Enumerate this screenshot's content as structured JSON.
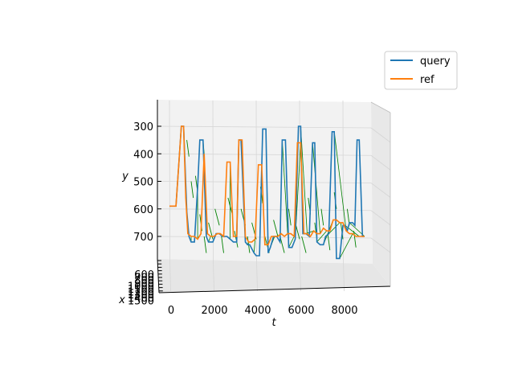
{
  "chart_data": {
    "type": "line",
    "projection": "3d",
    "xlabel": "t",
    "ylabel": "y",
    "zlabel": "x",
    "t_ticks": [
      "0",
      "2000",
      "4000",
      "6000",
      "8000"
    ],
    "t_range": [
      -300,
      9600
    ],
    "y_ticks": [
      "300",
      "400",
      "500",
      "600",
      "700"
    ],
    "y_range": [
      230,
      790
    ],
    "x_ticks": [
      "600",
      "700",
      "800",
      "900",
      "1000",
      "1100",
      "1200",
      "1300",
      "1400",
      "1500"
    ],
    "x_tick_labels_visible": [
      "600",
      "700",
      "800",
      "900",
      "1000",
      "1100",
      "1200",
      "1300",
      "1400",
      "1500"
    ],
    "grid": true,
    "legend_position": "top-right",
    "colors": {
      "query": "#1f77b4",
      "ref": "#ff7f0e",
      "alignment": "#008000",
      "pane": "#f0f0f0",
      "grid": "#d9d9d9"
    },
    "series": [
      {
        "name": "query",
        "t": [
          0,
          300,
          550,
          650,
          800,
          900,
          1000,
          1150,
          1300,
          1400,
          1550,
          1700,
          1800,
          2000,
          2150,
          2300,
          2450,
          2650,
          2800,
          2950,
          3100,
          3200,
          3300,
          3500,
          3600,
          3700,
          3900,
          4000,
          4150,
          4300,
          4450,
          4550,
          4650,
          4800,
          4950,
          5100,
          5200,
          5350,
          5500,
          5650,
          5800,
          5950,
          6050,
          6150,
          6300,
          6450,
          6600,
          6700,
          6800,
          6950,
          7100,
          7200,
          7350,
          7500,
          7600,
          7700,
          7850,
          8000,
          8100,
          8200,
          8300,
          8450,
          8550,
          8650,
          8750,
          8900,
          9000
        ],
        "y": [
          590,
          590,
          300,
          300,
          610,
          700,
          720,
          720,
          520,
          350,
          350,
          700,
          720,
          720,
          690,
          690,
          700,
          700,
          710,
          720,
          720,
          350,
          350,
          720,
          730,
          730,
          760,
          770,
          770,
          310,
          310,
          760,
          740,
          700,
          700,
          720,
          350,
          350,
          740,
          740,
          710,
          300,
          300,
          690,
          690,
          700,
          360,
          360,
          720,
          730,
          730,
          700,
          690,
          320,
          320,
          780,
          780,
          660,
          660,
          680,
          650,
          650,
          660,
          350,
          350,
          700,
          700
        ]
      },
      {
        "name": "ref",
        "t": [
          0,
          300,
          550,
          650,
          750,
          850,
          1000,
          1150,
          1300,
          1450,
          1600,
          1750,
          1900,
          2050,
          2200,
          2350,
          2500,
          2650,
          2800,
          2950,
          3100,
          3200,
          3350,
          3500,
          3650,
          3800,
          3950,
          4100,
          4250,
          4400,
          4550,
          4700,
          4850,
          5000,
          5150,
          5300,
          5450,
          5600,
          5750,
          5900,
          6050,
          6200,
          6350,
          6500,
          6650,
          6800,
          6950,
          7100,
          7250,
          7400,
          7550,
          7700,
          7850,
          8000,
          8150,
          8300,
          8450,
          8600,
          8750,
          8900,
          9000
        ],
        "y": [
          590,
          590,
          300,
          300,
          560,
          690,
          700,
          700,
          710,
          690,
          400,
          690,
          700,
          700,
          690,
          690,
          700,
          430,
          430,
          700,
          700,
          350,
          350,
          700,
          720,
          720,
          710,
          440,
          440,
          730,
          730,
          700,
          700,
          700,
          690,
          700,
          690,
          690,
          700,
          360,
          360,
          690,
          690,
          700,
          680,
          690,
          690,
          670,
          680,
          680,
          640,
          640,
          650,
          650,
          680,
          690,
          690,
          700,
          700,
          700,
          700
        ]
      }
    ],
    "alignment_links": [
      [
        800,
        900,
        350
      ],
      [
        1000,
        1100,
        500
      ],
      [
        1200,
        1300,
        480
      ],
      [
        1400,
        1500,
        620
      ],
      [
        1600,
        1700,
        700
      ],
      [
        1800,
        2000,
        650
      ],
      [
        2100,
        2300,
        600
      ],
      [
        2400,
        2500,
        700
      ],
      [
        2700,
        2900,
        560
      ],
      [
        3000,
        3150,
        680
      ],
      [
        3300,
        3500,
        600
      ],
      [
        3600,
        3700,
        700
      ],
      [
        3800,
        4000,
        650
      ],
      [
        4200,
        4300,
        520
      ],
      [
        4400,
        4600,
        700
      ],
      [
        4800,
        5000,
        640
      ],
      [
        5100,
        5300,
        700
      ],
      [
        5500,
        5600,
        600
      ],
      [
        5800,
        6000,
        650
      ],
      [
        6100,
        6300,
        700
      ],
      [
        6400,
        6500,
        560
      ],
      [
        6700,
        6800,
        650
      ],
      [
        7000,
        7100,
        600
      ],
      [
        7300,
        7400,
        690
      ],
      [
        7600,
        7700,
        540
      ],
      [
        7900,
        8000,
        650
      ],
      [
        8200,
        8300,
        600
      ],
      [
        8500,
        8600,
        680
      ]
    ]
  },
  "legend": {
    "items": [
      {
        "label": "query",
        "color": "#1f77b4"
      },
      {
        "label": "ref",
        "color": "#ff7f0e"
      }
    ]
  }
}
